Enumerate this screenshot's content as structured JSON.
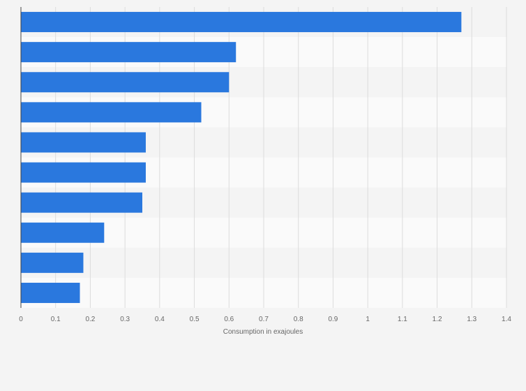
{
  "chart_data": {
    "type": "bar",
    "orientation": "horizontal",
    "title": "",
    "xlabel": "Consumption in exajoules",
    "ylabel": "",
    "categories": [
      "",
      "",
      "",
      "",
      "",
      "",
      "",
      "",
      "",
      ""
    ],
    "values": [
      1.27,
      0.62,
      0.6,
      0.52,
      0.36,
      0.36,
      0.35,
      0.24,
      0.18,
      0.17
    ],
    "xlim": [
      0,
      1.4
    ],
    "xticks": [
      0,
      0.1,
      0.2,
      0.3,
      0.4,
      0.5,
      0.6,
      0.7,
      0.8,
      0.9,
      1,
      1.1,
      1.2,
      1.3,
      1.4
    ],
    "grid": true,
    "bar_color": "#2a78de",
    "band_colors": [
      "#f4f4f4",
      "#fafafa"
    ],
    "gridline_color": "#dcdcdc"
  }
}
